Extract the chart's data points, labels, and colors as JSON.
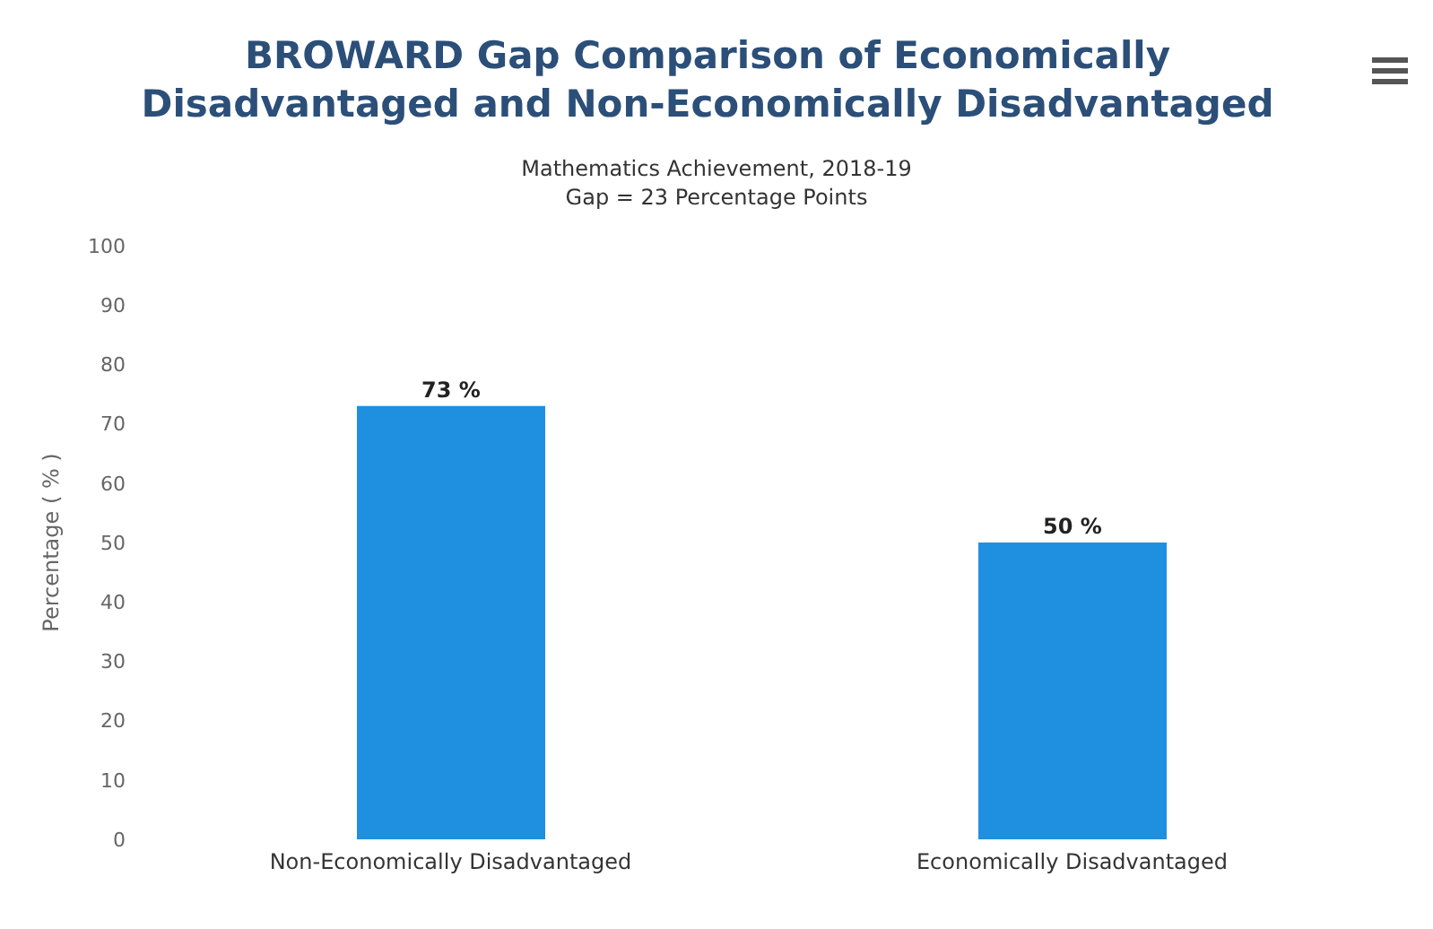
{
  "chart_data": {
    "type": "bar",
    "title": "BROWARD Gap Comparison of Economically Disadvantaged and Non-Economically Disadvantaged",
    "subtitle": "Mathematics Achievement, 2018-19\nGap = 23 Percentage Points",
    "ylabel": "Percentage ( % )",
    "categories": [
      "Non-Economically Disadvantaged",
      "Economically Disadvantaged"
    ],
    "values": [
      73,
      50
    ],
    "value_labels": [
      "73 %",
      "50 %"
    ],
    "color": "#1f8fe0",
    "ylim": [
      0,
      100
    ],
    "yticks": [
      0,
      10,
      20,
      30,
      40,
      50,
      60,
      70,
      80,
      90,
      100
    ],
    "grid": false,
    "legend": false
  }
}
